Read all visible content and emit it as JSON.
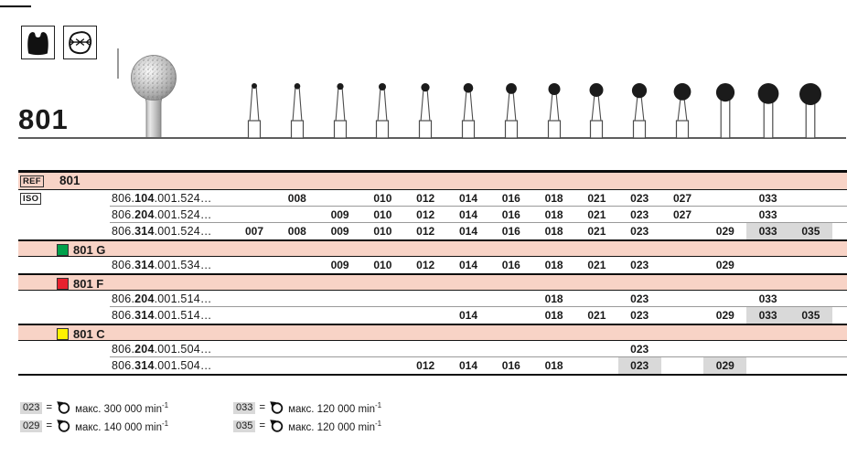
{
  "header": {
    "product_number": "801",
    "pictogram_names": [
      "crown-cavity-icon",
      "occlusal-surface-icon"
    ]
  },
  "size_columns": [
    "007",
    "008",
    "009",
    "010",
    "012",
    "014",
    "016",
    "018",
    "021",
    "023",
    "027",
    "029",
    "033",
    "035"
  ],
  "table": {
    "ref_label": "REF",
    "ref_value": "801",
    "iso_label": "ISO",
    "sections": [
      {
        "name": "801",
        "header": null,
        "rows": [
          {
            "iso": [
              "806.",
              "104",
              ".001.524…"
            ],
            "sizes": [
              "008",
              "010",
              "012",
              "014",
              "016",
              "018",
              "021",
              "023",
              "027",
              "033"
            ],
            "highlighted": []
          },
          {
            "iso": [
              "806.",
              "204",
              ".001.524…"
            ],
            "sizes": [
              "009",
              "010",
              "012",
              "014",
              "016",
              "018",
              "021",
              "023",
              "027",
              "033"
            ],
            "highlighted": []
          },
          {
            "iso": [
              "806.",
              "314",
              ".001.524…"
            ],
            "sizes": [
              "007",
              "008",
              "009",
              "010",
              "012",
              "014",
              "016",
              "018",
              "021",
              "023",
              "029",
              "033",
              "035"
            ],
            "highlighted": [
              "033",
              "035"
            ]
          }
        ]
      },
      {
        "name": "801 G",
        "header": {
          "label": "801 G",
          "swatch_color": "#00a14b"
        },
        "rows": [
          {
            "iso": [
              "806.",
              "314",
              ".001.534…"
            ],
            "sizes": [
              "009",
              "010",
              "012",
              "014",
              "016",
              "018",
              "021",
              "023",
              "029"
            ],
            "highlighted": []
          }
        ]
      },
      {
        "name": "801 F",
        "header": {
          "label": "801 F",
          "swatch_color": "#e8212e"
        },
        "rows": [
          {
            "iso": [
              "806.",
              "204",
              ".001.514…"
            ],
            "sizes": [
              "018",
              "023",
              "033"
            ],
            "highlighted": []
          },
          {
            "iso": [
              "806.",
              "314",
              ".001.514…"
            ],
            "sizes": [
              "014",
              "018",
              "021",
              "023",
              "029",
              "033",
              "035"
            ],
            "highlighted": [
              "033",
              "035"
            ]
          }
        ]
      },
      {
        "name": "801 C",
        "header": {
          "label": "801 C",
          "swatch_color": "#fff200"
        },
        "rows": [
          {
            "iso": [
              "806.",
              "204",
              ".001.504…"
            ],
            "sizes": [
              "023"
            ],
            "highlighted": []
          },
          {
            "iso": [
              "806.",
              "314",
              ".001.504…"
            ],
            "sizes": [
              "012",
              "014",
              "016",
              "018",
              "023",
              "029"
            ],
            "highlighted": [
              "023",
              "029"
            ]
          }
        ]
      }
    ]
  },
  "speed_legend": [
    {
      "size": "023",
      "equals": "=",
      "text": "макс. 300 000 min",
      "sup": "-1"
    },
    {
      "size": "029",
      "equals": "=",
      "text": "макс. 140 000 min",
      "sup": "-1"
    },
    {
      "size": "033",
      "equals": "=",
      "text": "макс. 120 000 min",
      "sup": "-1"
    },
    {
      "size": "035",
      "equals": "=",
      "text": "макс. 120 000 min",
      "sup": "-1"
    }
  ],
  "colors": {
    "row_pink": "#f8d3c6",
    "cell_highlight": "#d9d9d9",
    "green": "#00a14b",
    "red": "#e8212e",
    "yellow": "#fff200"
  }
}
